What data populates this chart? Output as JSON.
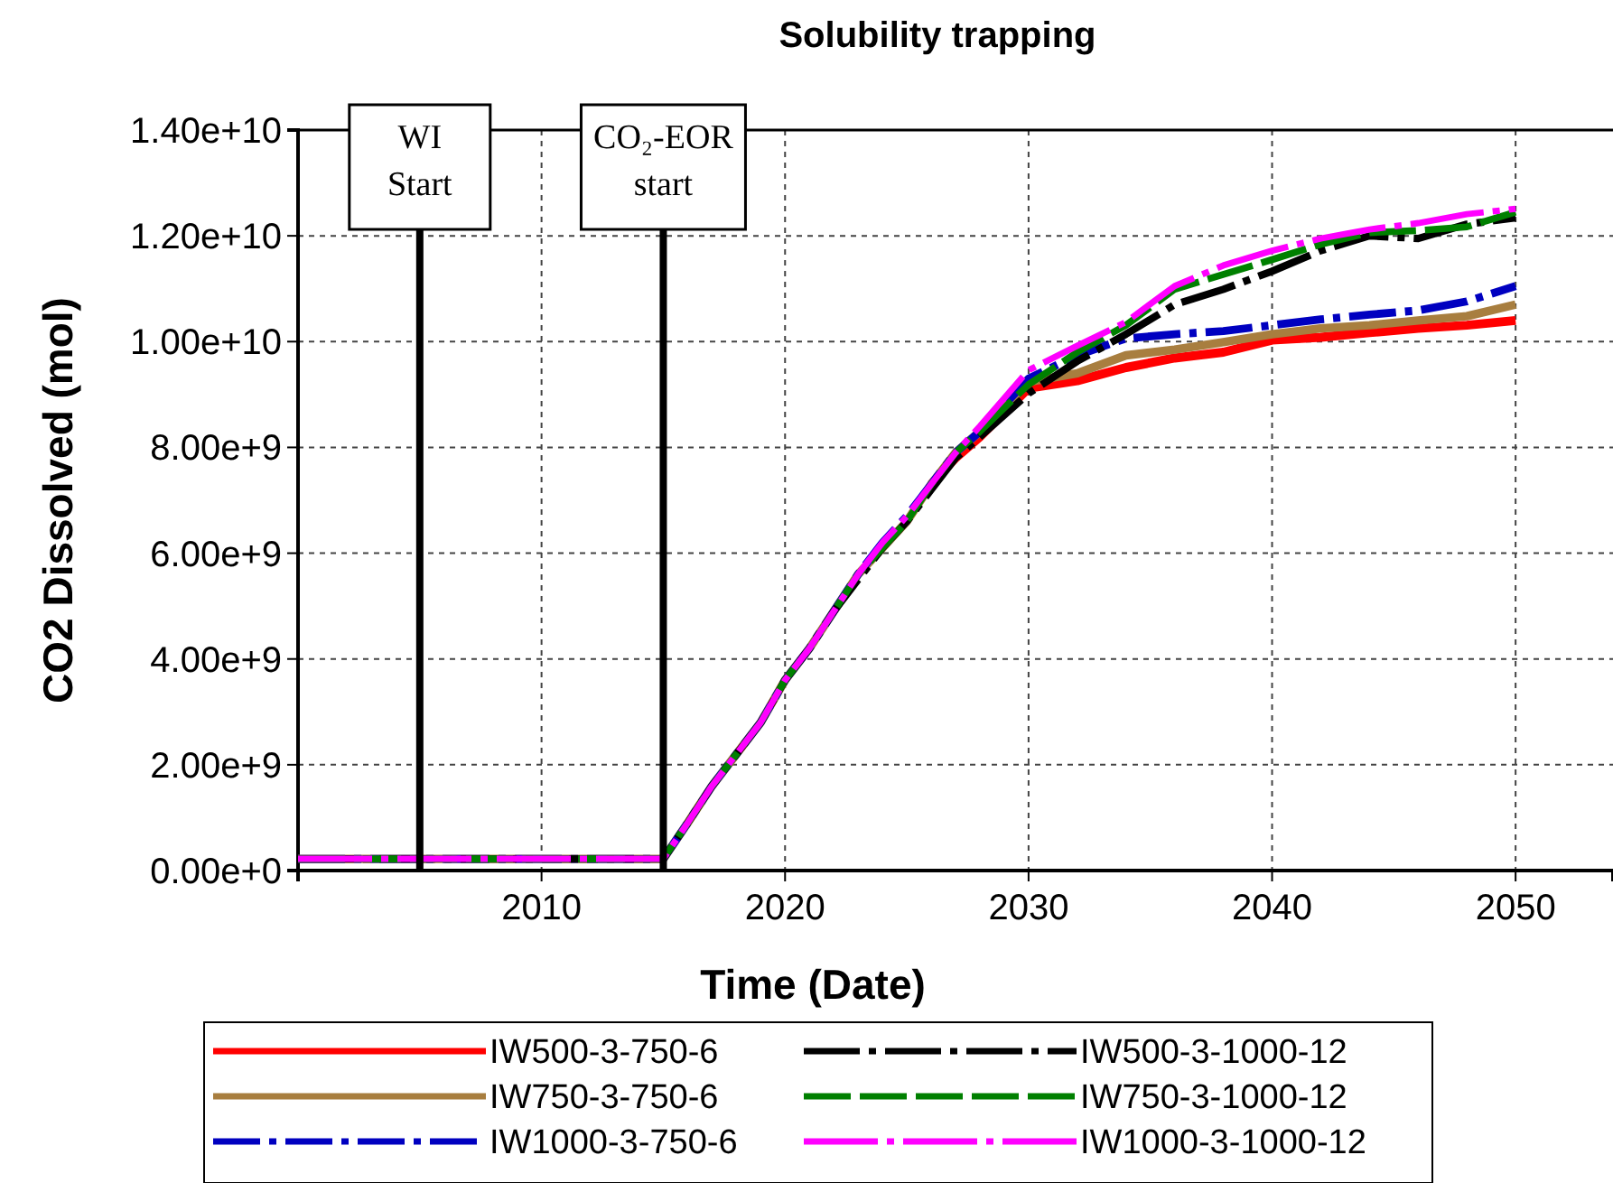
{
  "chart_data": {
    "type": "line",
    "title": "Solubility trapping",
    "xlabel": "Time (Date)",
    "ylabel": "CO2 Dissolved (mol)",
    "x": [
      2000,
      2015,
      2016,
      2017,
      2018,
      2019,
      2020,
      2021,
      2022,
      2023,
      2024,
      2025,
      2026,
      2027,
      2028,
      2030,
      2032,
      2034,
      2036,
      2038,
      2040,
      2042,
      2044,
      2046,
      2048,
      2050
    ],
    "series": [
      {
        "name": "IW500-3-750-6",
        "color": "#ff0000",
        "line_style": "solid",
        "values": [
          null,
          null,
          null,
          null,
          null,
          null,
          null,
          null,
          null,
          null,
          null,
          null,
          7300000000,
          7800000000,
          8200000000,
          9120000000,
          9260000000,
          9510000000,
          9690000000,
          9800000000,
          10030000000,
          10080000000,
          10170000000,
          10250000000,
          10310000000,
          10400000000
        ]
      },
      {
        "name": "IW750-3-750-6",
        "color": "#a87e3f",
        "line_style": "solid",
        "values": [
          220000000,
          220000000,
          900000000,
          1600000000,
          2200000000,
          2800000000,
          3600000000,
          4200000000,
          4900000000,
          5600000000,
          6100000000,
          6600000000,
          7300000000,
          7900000000,
          8300000000,
          9240000000,
          9400000000,
          9740000000,
          9850000000,
          9990000000,
          10140000000,
          10250000000,
          10310000000,
          10400000000,
          10480000000,
          10700000000
        ]
      },
      {
        "name": "IW1000-3-750-6",
        "color": "#0000c0",
        "line_style": "dashed",
        "values": [
          220000000,
          220000000,
          900000000,
          1600000000,
          2200000000,
          2800000000,
          3600000000,
          4200000000,
          4900000000,
          5600000000,
          6200000000,
          6700000000,
          7300000000,
          7900000000,
          8300000000,
          9300000000,
          9740000000,
          10060000000,
          10140000000,
          10200000000,
          10310000000,
          10420000000,
          10510000000,
          10590000000,
          10760000000,
          11050000000
        ]
      },
      {
        "name": "IW500-3-1000-12",
        "color": "#000000",
        "line_style": "dashed",
        "values": [
          220000000,
          220000000,
          900000000,
          1600000000,
          2200000000,
          2800000000,
          3600000000,
          4200000000,
          4900000000,
          5500000000,
          6100000000,
          6600000000,
          7200000000,
          7800000000,
          8200000000,
          9020000000,
          9630000000,
          10140000000,
          10700000000,
          10990000000,
          11330000000,
          11720000000,
          12000000000,
          11950000000,
          12220000000,
          12340000000
        ]
      },
      {
        "name": "IW750-3-1000-12",
        "color": "#008000",
        "line_style": "dotted",
        "values": [
          220000000,
          220000000,
          900000000,
          1600000000,
          2200000000,
          2800000000,
          3600000000,
          4200000000,
          4900000000,
          5600000000,
          6100000000,
          6600000000,
          7300000000,
          7900000000,
          8300000000,
          9190000000,
          9800000000,
          10310000000,
          10990000000,
          11270000000,
          11550000000,
          11840000000,
          12060000000,
          12100000000,
          12170000000,
          12450000000
        ]
      },
      {
        "name": "IW1000-3-1000-12",
        "color": "#ff00ff",
        "line_style": "dashed",
        "values": [
          220000000,
          220000000,
          900000000,
          1600000000,
          2200000000,
          2800000000,
          3600000000,
          4200000000,
          4900000000,
          5600000000,
          6200000000,
          6700000000,
          7300000000,
          7900000000,
          8400000000,
          9460000000,
          9920000000,
          10370000000,
          11050000000,
          11440000000,
          11720000000,
          11950000000,
          12120000000,
          12240000000,
          12410000000,
          12510000000
        ]
      }
    ],
    "xlim": [
      2000,
      2054
    ],
    "xticks": [
      2010,
      2020,
      2030,
      2040,
      2050
    ],
    "ylim": [
      0,
      14000000000
    ],
    "yticks": [
      {
        "value": 0,
        "label": "0.00e+0"
      },
      {
        "value": 2000000000,
        "label": "2.00e+9"
      },
      {
        "value": 4000000000,
        "label": "4.00e+9"
      },
      {
        "value": 6000000000,
        "label": "6.00e+9"
      },
      {
        "value": 8000000000,
        "label": "8.00e+9"
      },
      {
        "value": 10000000000,
        "label": "1.00e+10"
      },
      {
        "value": 12000000000,
        "label": "1.20e+10"
      },
      {
        "value": 14000000000,
        "label": "1.40e+10"
      }
    ],
    "grid": true,
    "legend": "bottom",
    "marker": "none",
    "ref_lines": [
      {
        "axis": "x",
        "value": 2005,
        "label": "WI Start",
        "color": "#000000"
      },
      {
        "axis": "x",
        "value": 2015,
        "label": "CO₂-EOR start",
        "color": "#000000"
      }
    ]
  }
}
